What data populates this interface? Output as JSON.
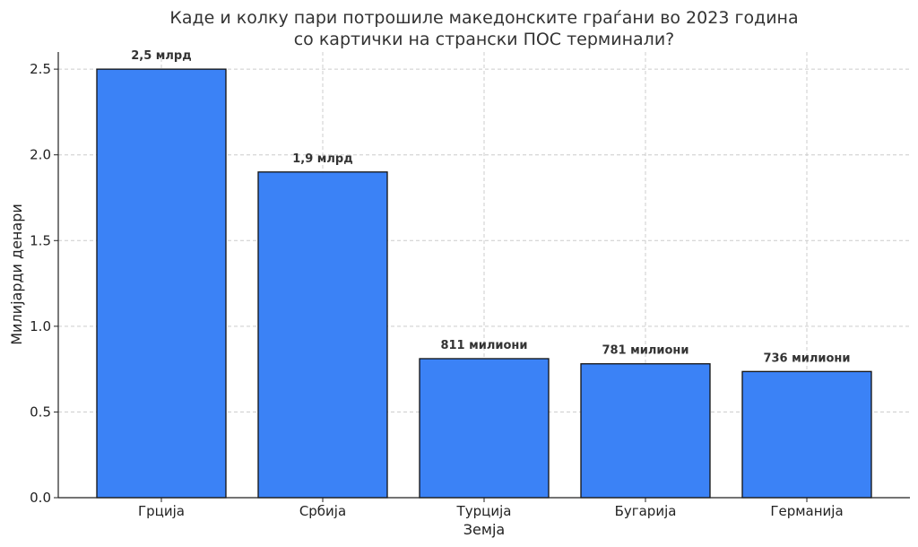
{
  "chart_data": {
    "type": "bar",
    "title_lines": [
      "Каде и колку пари потрошиле македонските граѓани во 2023 година",
      "со картички на странски ПОС терминали?"
    ],
    "xlabel": "Земја",
    "ylabel": "Милијарди денари",
    "categories": [
      "Грција",
      "Србија",
      "Турција",
      "Бугарија",
      "Германија"
    ],
    "values": [
      2.5,
      1.9,
      0.811,
      0.781,
      0.736
    ],
    "data_labels": [
      "2,5 млрд",
      "1,9 млрд",
      "811 милиони",
      "781 милиони",
      "736 милиони"
    ],
    "ylim": [
      0,
      2.6
    ],
    "yticks": [
      0.0,
      0.5,
      1.0,
      1.5,
      2.0,
      2.5
    ],
    "ytick_labels": [
      "0.0",
      "0.5",
      "1.0",
      "1.5",
      "2.0",
      "2.5"
    ],
    "grid": true,
    "bar_color": "#3b82f6",
    "bar_edge_color": "#111111"
  }
}
